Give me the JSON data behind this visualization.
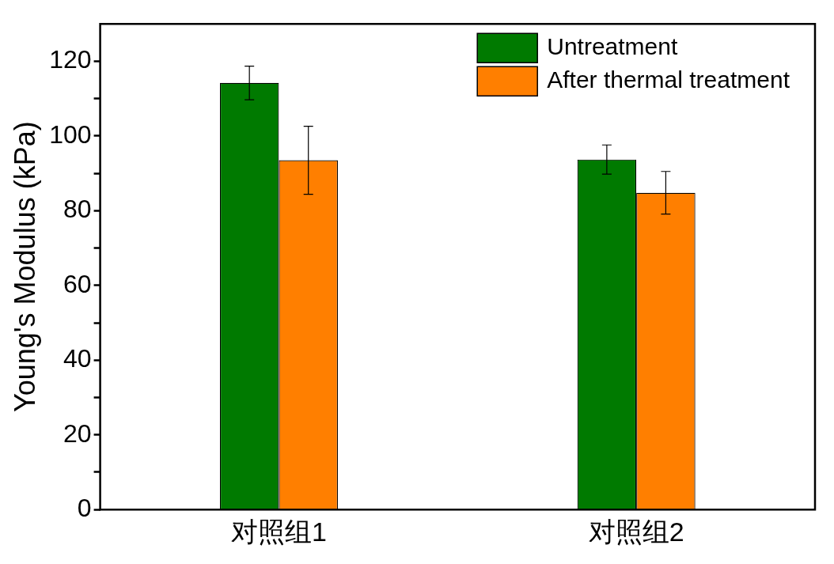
{
  "chart_data": {
    "type": "bar",
    "ylabel": "Young's Modulus (kPa)",
    "categories": [
      "对照组1",
      "对照组2"
    ],
    "series": [
      {
        "name": "Untreatment",
        "color": "#007a00",
        "values": [
          114.2,
          93.7
        ],
        "errors": [
          4.5,
          3.9
        ]
      },
      {
        "name": "After thermal treatment",
        "color": "#ff7f00",
        "values": [
          93.5,
          84.8
        ],
        "errors": [
          9.1,
          5.7
        ]
      }
    ],
    "ylim": [
      0,
      130
    ],
    "yticks": [
      0,
      {
        "value": 10,
        "label": null
      },
      20,
      {
        "value": 30,
        "label": null
      },
      40,
      {
        "value": 50,
        "label": null
      },
      60,
      {
        "value": 70,
        "label": null
      },
      80,
      {
        "value": 90,
        "label": null
      },
      100,
      {
        "value": 110,
        "label": null
      },
      120
    ],
    "grid": false,
    "legend": "top right"
  }
}
